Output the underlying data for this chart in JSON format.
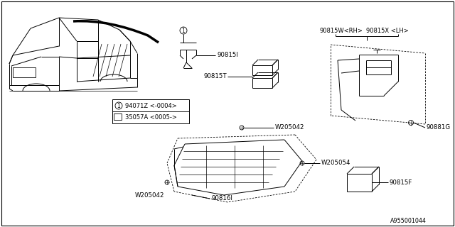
{
  "bg_color": "#ffffff",
  "line_color": "#000000",
  "text_color": "#000000",
  "diagram_id": "A955001044",
  "labels": {
    "part_90815I": "90815I",
    "part_90815T": "90815T",
    "part_90815W": "90815W<RH>",
    "part_90815X": "90815X <LH>",
    "part_90881G": "90881G",
    "part_90815F": "90815F",
    "part_90816I": "90816I",
    "bolt_W205042a": "W205042",
    "bolt_W205042b": "W205042",
    "bolt_W205054": "W205054",
    "legend_line1": "94071Z <-0004>",
    "legend_line2": "35057A <0005->",
    "circle_num": "1"
  },
  "figsize": [
    6.4,
    3.2
  ],
  "dpi": 100
}
